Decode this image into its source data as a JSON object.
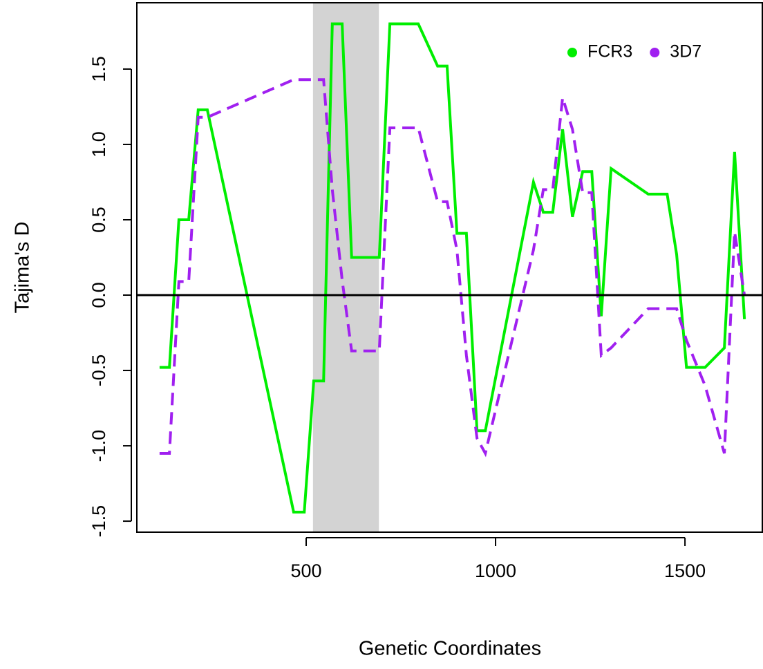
{
  "chart_data": {
    "type": "line",
    "xlabel": "Genetic Coordinates",
    "ylabel": "Tajima's D",
    "x": [
      113,
      139,
      164,
      190,
      215,
      239,
      467,
      495,
      520,
      546,
      569,
      595,
      620,
      693,
      721,
      796,
      847,
      872,
      898,
      923,
      951,
      973,
      1100,
      1126,
      1151,
      1177,
      1203,
      1230,
      1254,
      1279,
      1305,
      1403,
      1453,
      1478,
      1504,
      1553,
      1604,
      1631,
      1657
    ],
    "series": [
      {
        "name": "FCR3",
        "color": "#00ee00",
        "linestyle": "solid",
        "values": [
          -0.48,
          -0.48,
          0.5,
          0.5,
          1.23,
          1.23,
          -1.44,
          -1.44,
          -0.57,
          -0.57,
          1.8,
          1.8,
          0.25,
          0.25,
          1.8,
          1.8,
          1.52,
          1.52,
          0.41,
          0.41,
          -0.9,
          -0.9,
          0.75,
          0.55,
          0.55,
          1.1,
          0.52,
          0.82,
          0.82,
          -0.14,
          0.84,
          0.67,
          0.67,
          0.27,
          -0.48,
          -0.48,
          -0.35,
          0.95,
          -0.16
        ]
      },
      {
        "name": "3D7",
        "color": "#a020f0",
        "linestyle": "dashed",
        "values": [
          -1.05,
          -1.05,
          0.09,
          0.09,
          1.18,
          1.18,
          1.43,
          1.43,
          1.43,
          1.43,
          0.7,
          0.1,
          -0.37,
          -0.37,
          1.11,
          1.11,
          0.62,
          0.62,
          0.3,
          -0.4,
          -0.95,
          -1.05,
          0.3,
          0.7,
          0.7,
          1.31,
          1.1,
          0.68,
          0.68,
          -0.4,
          -0.35,
          -0.09,
          -0.09,
          -0.09,
          -0.3,
          -0.6,
          -1.05,
          0.42,
          0.0
        ]
      }
    ],
    "shade": [
      518,
      692
    ],
    "hline": 0,
    "xlim": [
      53,
      1706
    ],
    "ylim": [
      -1.573,
      1.94
    ],
    "xticks": [
      500,
      1000,
      1500
    ],
    "yticks": [
      -1.5,
      {
        "value": -1.0,
        "label": "-1.0"
      },
      -0.5,
      {
        "value": 0.0,
        "label": "0.0"
      },
      0.5,
      {
        "value": 1.0,
        "label": "1.0"
      },
      1.5
    ],
    "legend": "topright"
  }
}
